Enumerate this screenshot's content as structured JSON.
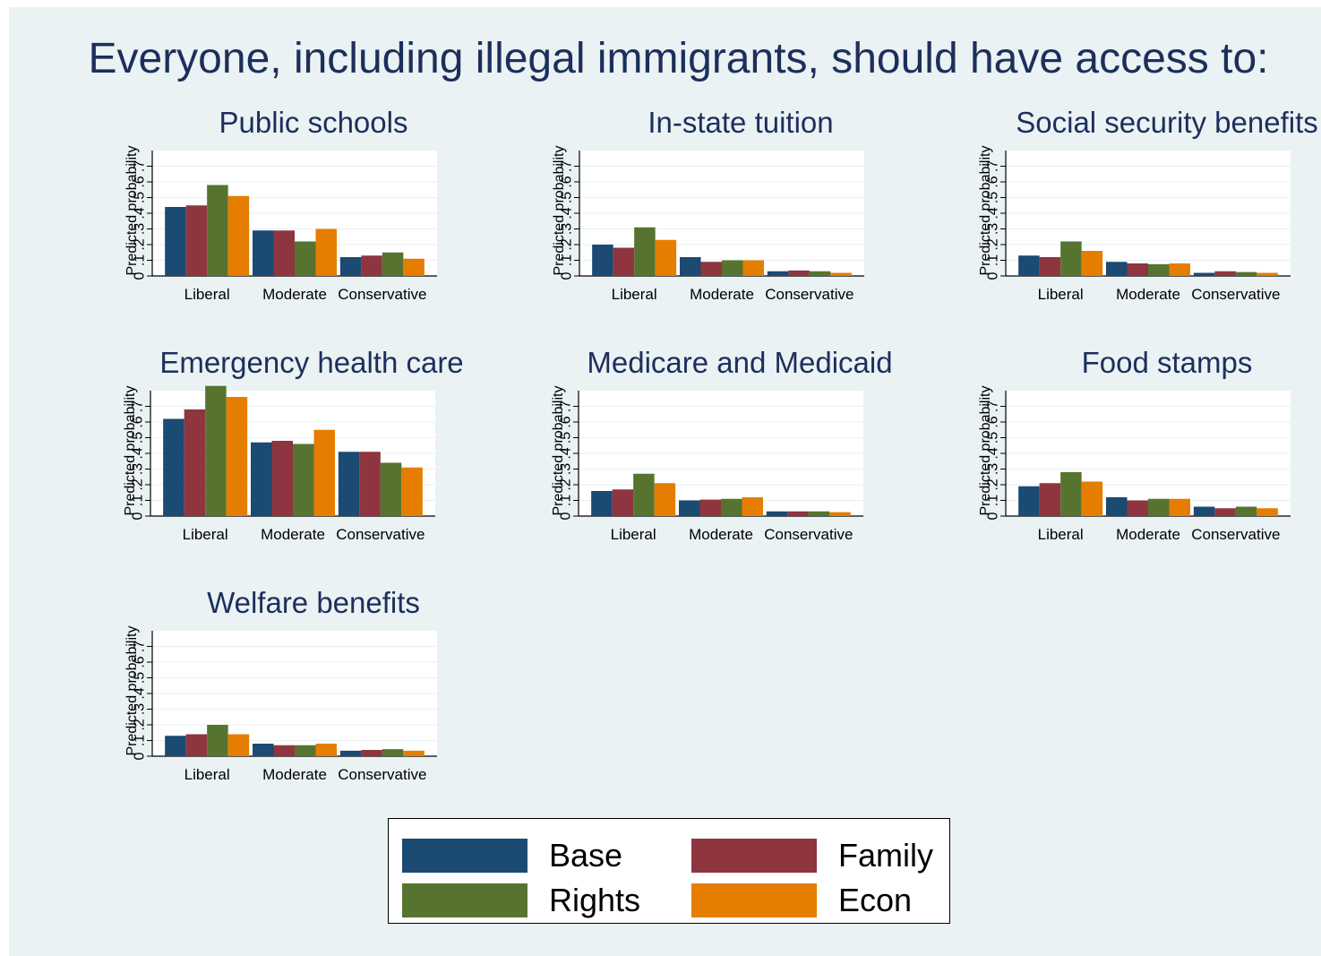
{
  "title": "Everyone, including illegal immigrants, should have access to:",
  "colors": {
    "Base": "#1b4a72",
    "Family": "#8e3540",
    "Rights": "#56742f",
    "Econ": "#e57e00"
  },
  "chart_data": [
    {
      "type": "bar",
      "title": "Public schools",
      "ylabel": "Predicted probability",
      "categories": [
        "Liberal",
        "Moderate",
        "Conservative"
      ],
      "yticks": [
        "0",
        ".1",
        ".2",
        ".3",
        ".4",
        ".5",
        ".6",
        ".7"
      ],
      "ylim": [
        0,
        0.8
      ],
      "series": [
        {
          "name": "Base",
          "values": [
            0.44,
            0.29,
            0.12
          ]
        },
        {
          "name": "Family",
          "values": [
            0.45,
            0.29,
            0.13
          ]
        },
        {
          "name": "Rights",
          "values": [
            0.58,
            0.22,
            0.15
          ]
        },
        {
          "name": "Econ",
          "values": [
            0.51,
            0.3,
            0.11
          ]
        }
      ]
    },
    {
      "type": "bar",
      "title": "In-state tuition",
      "ylabel": "Predicted probability",
      "categories": [
        "Liberal",
        "Moderate",
        "Conservative"
      ],
      "yticks": [
        "0",
        ".1",
        ".2",
        ".3",
        ".4",
        ".5",
        ".6",
        ".7"
      ],
      "ylim": [
        0,
        0.8
      ],
      "series": [
        {
          "name": "Base",
          "values": [
            0.2,
            0.12,
            0.03
          ]
        },
        {
          "name": "Family",
          "values": [
            0.18,
            0.09,
            0.035
          ]
        },
        {
          "name": "Rights",
          "values": [
            0.31,
            0.1,
            0.03
          ]
        },
        {
          "name": "Econ",
          "values": [
            0.23,
            0.1,
            0.02
          ]
        }
      ]
    },
    {
      "type": "bar",
      "title": "Social security benefits",
      "ylabel": "Predicted probability",
      "categories": [
        "Liberal",
        "Moderate",
        "Conservative"
      ],
      "yticks": [
        "0",
        ".1",
        ".2",
        ".3",
        ".4",
        ".5",
        ".6",
        ".7"
      ],
      "ylim": [
        0,
        0.8
      ],
      "series": [
        {
          "name": "Base",
          "values": [
            0.13,
            0.09,
            0.02
          ]
        },
        {
          "name": "Family",
          "values": [
            0.12,
            0.08,
            0.03
          ]
        },
        {
          "name": "Rights",
          "values": [
            0.22,
            0.075,
            0.025
          ]
        },
        {
          "name": "Econ",
          "values": [
            0.16,
            0.08,
            0.02
          ]
        }
      ]
    },
    {
      "type": "bar",
      "title": "Emergency health care",
      "ylabel": "Predicted probability",
      "categories": [
        "Liberal",
        "Moderate",
        "Conservative"
      ],
      "yticks": [
        "0",
        ".1",
        ".2",
        ".3",
        ".4",
        ".5",
        ".6",
        ".7"
      ],
      "ylim": [
        0,
        0.8
      ],
      "series": [
        {
          "name": "Base",
          "values": [
            0.62,
            0.47,
            0.41
          ]
        },
        {
          "name": "Family",
          "values": [
            0.68,
            0.48,
            0.41
          ]
        },
        {
          "name": "Rights",
          "values": [
            0.83,
            0.46,
            0.34
          ]
        },
        {
          "name": "Econ",
          "values": [
            0.76,
            0.55,
            0.31
          ]
        }
      ]
    },
    {
      "type": "bar",
      "title": "Medicare and Medicaid",
      "ylabel": "Predicted probability",
      "categories": [
        "Liberal",
        "Moderate",
        "Conservative"
      ],
      "yticks": [
        "0",
        ".1",
        ".2",
        ".3",
        ".4",
        ".5",
        ".6",
        ".7"
      ],
      "ylim": [
        0,
        0.8
      ],
      "series": [
        {
          "name": "Base",
          "values": [
            0.16,
            0.1,
            0.03
          ]
        },
        {
          "name": "Family",
          "values": [
            0.17,
            0.105,
            0.03
          ]
        },
        {
          "name": "Rights",
          "values": [
            0.27,
            0.11,
            0.03
          ]
        },
        {
          "name": "Econ",
          "values": [
            0.21,
            0.12,
            0.025
          ]
        }
      ]
    },
    {
      "type": "bar",
      "title": "Food stamps",
      "ylabel": "Predicted probability",
      "categories": [
        "Liberal",
        "Moderate",
        "Conservative"
      ],
      "yticks": [
        "0",
        ".1",
        ".2",
        ".3",
        ".4",
        ".5",
        ".6",
        ".7"
      ],
      "ylim": [
        0,
        0.8
      ],
      "series": [
        {
          "name": "Base",
          "values": [
            0.19,
            0.12,
            0.06
          ]
        },
        {
          "name": "Family",
          "values": [
            0.21,
            0.1,
            0.05
          ]
        },
        {
          "name": "Rights",
          "values": [
            0.28,
            0.11,
            0.06
          ]
        },
        {
          "name": "Econ",
          "values": [
            0.22,
            0.11,
            0.05
          ]
        }
      ]
    },
    {
      "type": "bar",
      "title": "Welfare benefits",
      "ylabel": "Predicted probability",
      "categories": [
        "Liberal",
        "Moderate",
        "Conservative"
      ],
      "yticks": [
        "0",
        ".1",
        ".2",
        ".3",
        ".4",
        ".5",
        ".6",
        ".7"
      ],
      "ylim": [
        0,
        0.8
      ],
      "series": [
        {
          "name": "Base",
          "values": [
            0.13,
            0.08,
            0.035
          ]
        },
        {
          "name": "Family",
          "values": [
            0.14,
            0.07,
            0.04
          ]
        },
        {
          "name": "Rights",
          "values": [
            0.2,
            0.07,
            0.045
          ]
        },
        {
          "name": "Econ",
          "values": [
            0.14,
            0.08,
            0.035
          ]
        }
      ]
    }
  ],
  "legend": {
    "placement": "bottom-center",
    "items": [
      "Base",
      "Family",
      "Rights",
      "Econ"
    ]
  }
}
